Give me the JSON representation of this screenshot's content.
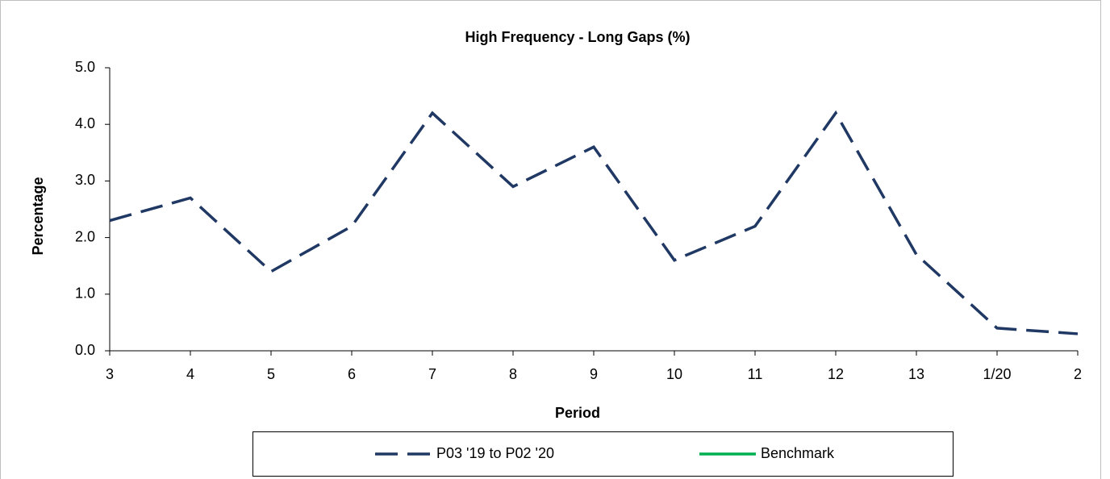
{
  "chart_data": {
    "type": "line",
    "title": "High Frequency - Long Gaps (%)",
    "x_label": "Period",
    "y_label": "Percentage",
    "categories": [
      "3",
      "4",
      "5",
      "6",
      "7",
      "8",
      "9",
      "10",
      "11",
      "12",
      "13",
      "1/20",
      "2"
    ],
    "series": [
      {
        "name": "P03 '19 to P02 '20",
        "color": "#203864",
        "dashed": true,
        "values": [
          2.3,
          2.7,
          1.4,
          2.2,
          4.2,
          2.9,
          3.6,
          1.6,
          2.2,
          4.2,
          1.7,
          0.4,
          0.3
        ]
      },
      {
        "name": "Benchmark",
        "color": "#00b050",
        "dashed": false,
        "values": [
          null,
          null,
          null,
          null,
          null,
          null,
          null,
          null,
          null,
          null,
          null,
          null,
          null
        ]
      }
    ],
    "ylim": [
      0,
      5
    ],
    "yticks": [
      {
        "value": 0,
        "label": "0.0"
      },
      {
        "value": 1,
        "label": "1.0"
      },
      {
        "value": 2,
        "label": "2.0"
      },
      {
        "value": 3,
        "label": "3.0"
      },
      {
        "value": 4,
        "label": "4.0"
      },
      {
        "value": 5,
        "label": "5.0"
      }
    ],
    "grid": false,
    "legend": "bottom"
  }
}
